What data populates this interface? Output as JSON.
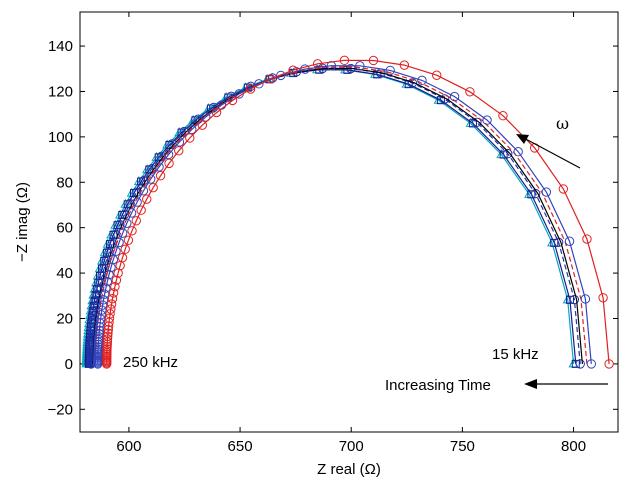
{
  "chart_data": {
    "type": "line",
    "title": "",
    "xlabel": "Z real (Ω)",
    "ylabel": "−Z imag (Ω)",
    "xlim": [
      578,
      820
    ],
    "ylim": [
      -30,
      155
    ],
    "xticks": [
      600,
      650,
      700,
      750,
      800
    ],
    "yticks": [
      -20,
      0,
      20,
      40,
      60,
      80,
      100,
      120,
      140
    ],
    "xtick_labels": [
      "600",
      "650",
      "700",
      "750",
      "800"
    ],
    "ytick_labels": [
      "−20",
      "0",
      "20",
      "40",
      "60",
      "80",
      "100",
      "120",
      "140"
    ],
    "grid": false,
    "legend": "none",
    "series": [
      {
        "color": "#00a8c0",
        "marker": "triangle",
        "style": "solid",
        "x0": 581,
        "x1": 800
      },
      {
        "color": "#1a1a8c",
        "marker": "square",
        "style": "solid",
        "x0": 582,
        "x1": 801
      },
      {
        "color": "#2233aa",
        "marker": "circle",
        "style": "dashed",
        "x0": 583,
        "x1": 803
      },
      {
        "color": "#000000",
        "marker": "none",
        "style": "solid",
        "x0": 584,
        "x1": 804
      },
      {
        "color": "#e02020",
        "marker": "none",
        "style": "dashed",
        "x0": 585,
        "x1": 806
      },
      {
        "color": "#3344bb",
        "marker": "circle",
        "style": "solid",
        "x0": 586,
        "x1": 808
      },
      {
        "color": "#e02020",
        "marker": "circle",
        "style": "solid",
        "x0": 590,
        "x1": 816
      }
    ],
    "annotations": {
      "high_freq": "250 kHz",
      "low_freq": "15 kHz",
      "time": "Increasing Time",
      "omega": "ω"
    }
  }
}
